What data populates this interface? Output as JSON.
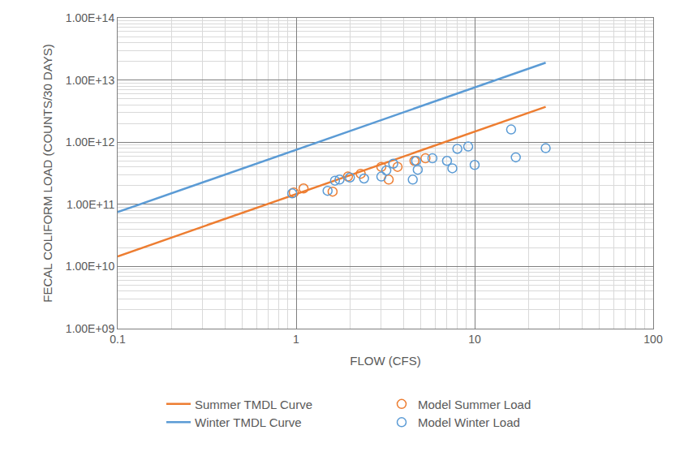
{
  "chart_data": {
    "type": "scatter",
    "x_label": "FLOW (CFS)",
    "y_label": "FECAL COLIFORM LOAD (COUNTS/30 DAYS)",
    "log": true,
    "grid": true,
    "legend": "bottom",
    "xlim": [
      0.1,
      100
    ],
    "xticks": [
      0.1,
      1,
      10,
      100
    ],
    "ylim": [
      1000000000.0,
      100000000000000.0
    ],
    "yticks": [
      {
        "value": 1000000000.0,
        "label": "1.00E+09"
      },
      {
        "value": 10000000000.0,
        "label": "1.00E+10"
      },
      {
        "value": 100000000000.0,
        "label": "1.00E+11"
      },
      {
        "value": 1000000000000.0,
        "label": "1.00E+12"
      },
      {
        "value": 10000000000000.0,
        "label": "1.00E+13"
      },
      {
        "value": 100000000000000.0,
        "label": "1.00E+14"
      }
    ],
    "series": [
      {
        "name": "Summer TMDL Curve",
        "type": "line",
        "line_style": "solid",
        "color": "#ed7d31",
        "x": [
          0.1,
          25
        ],
        "values": [
          14500000000.0,
          3700000000000.0
        ]
      },
      {
        "name": "Model Summer Load",
        "type": "scatter",
        "marker": "circle-open",
        "color": "#ed7d31",
        "x": [
          0.97,
          1.1,
          1.6,
          1.95,
          2.3,
          3.0,
          3.3,
          3.7,
          4.6,
          5.3
        ],
        "values": [
          155000000000.0,
          180000000000.0,
          160000000000.0,
          280000000000.0,
          310000000000.0,
          400000000000.0,
          250000000000.0,
          400000000000.0,
          500000000000.0,
          550000000000.0
        ]
      },
      {
        "name": "Winter TMDL Curve",
        "type": "line",
        "line_style": "solid",
        "color": "#5b9bd5",
        "x": [
          0.1,
          25
        ],
        "values": [
          75000000000.0,
          19000000000000.0
        ]
      },
      {
        "name": "Model Winter Load",
        "type": "scatter",
        "marker": "circle-open",
        "color": "#5b9bd5",
        "x": [
          0.95,
          1.5,
          1.65,
          1.75,
          2.0,
          2.4,
          3.0,
          3.2,
          3.5,
          4.5,
          4.8,
          4.7,
          5.8,
          7.0,
          7.5,
          8.0,
          9.2,
          10,
          16,
          17,
          25
        ],
        "values": [
          150000000000.0,
          165000000000.0,
          240000000000.0,
          250000000000.0,
          270000000000.0,
          260000000000.0,
          280000000000.0,
          350000000000.0,
          450000000000.0,
          250000000000.0,
          360000000000.0,
          500000000000.0,
          550000000000.0,
          500000000000.0,
          380000000000.0,
          780000000000.0,
          850000000000.0,
          430000000000.0,
          1600000000000.0,
          570000000000.0,
          800000000000.0
        ]
      }
    ]
  }
}
